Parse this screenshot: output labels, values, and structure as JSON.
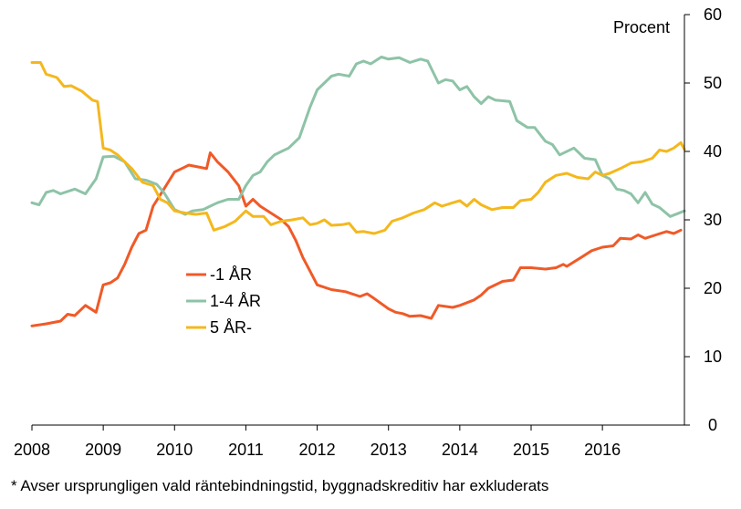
{
  "chart_data": {
    "type": "line",
    "unit_label": "Procent",
    "x_ticks": [
      "2008",
      "2009",
      "2010",
      "2011",
      "2012",
      "2013",
      "2014",
      "2015",
      "2016"
    ],
    "xlim": [
      2008,
      2017.15
    ],
    "ylim": [
      0,
      60
    ],
    "y_ticks": [
      0,
      10,
      20,
      30,
      40,
      50,
      60
    ],
    "y_axis_side": "right",
    "grid": false,
    "legend_placement": "center-left",
    "series": [
      {
        "name": "-1 ÅR",
        "color": "#F05A28",
        "points": [
          [
            2008.0,
            14.5
          ],
          [
            2008.2,
            14.8
          ],
          [
            2008.4,
            15.2
          ],
          [
            2008.5,
            16.2
          ],
          [
            2008.6,
            16.0
          ],
          [
            2008.75,
            17.5
          ],
          [
            2008.9,
            16.5
          ],
          [
            2009.0,
            20.5
          ],
          [
            2009.1,
            20.8
          ],
          [
            2009.2,
            21.5
          ],
          [
            2009.3,
            23.5
          ],
          [
            2009.4,
            26.0
          ],
          [
            2009.5,
            28.0
          ],
          [
            2009.6,
            28.5
          ],
          [
            2009.7,
            32.0
          ],
          [
            2009.85,
            34.5
          ],
          [
            2010.0,
            37.0
          ],
          [
            2010.1,
            37.5
          ],
          [
            2010.2,
            38.0
          ],
          [
            2010.3,
            37.8
          ],
          [
            2010.45,
            37.5
          ],
          [
            2010.5,
            39.8
          ],
          [
            2010.6,
            38.5
          ],
          [
            2010.75,
            37.0
          ],
          [
            2010.9,
            35.0
          ],
          [
            2011.0,
            32.0
          ],
          [
            2011.1,
            33.0
          ],
          [
            2011.2,
            32.0
          ],
          [
            2011.35,
            31.0
          ],
          [
            2011.5,
            30.0
          ],
          [
            2011.6,
            29.0
          ],
          [
            2011.7,
            27.0
          ],
          [
            2011.8,
            24.5
          ],
          [
            2011.9,
            22.5
          ],
          [
            2012.0,
            20.5
          ],
          [
            2012.2,
            19.8
          ],
          [
            2012.4,
            19.5
          ],
          [
            2012.6,
            18.8
          ],
          [
            2012.7,
            19.2
          ],
          [
            2012.8,
            18.5
          ],
          [
            2013.0,
            17.0
          ],
          [
            2013.1,
            16.5
          ],
          [
            2013.2,
            16.3
          ],
          [
            2013.3,
            15.9
          ],
          [
            2013.45,
            16.0
          ],
          [
            2013.6,
            15.6
          ],
          [
            2013.7,
            17.5
          ],
          [
            2013.9,
            17.2
          ],
          [
            2014.0,
            17.5
          ],
          [
            2014.2,
            18.3
          ],
          [
            2014.3,
            19.0
          ],
          [
            2014.4,
            20.0
          ],
          [
            2014.6,
            21.0
          ],
          [
            2014.75,
            21.2
          ],
          [
            2014.85,
            23.0
          ],
          [
            2015.0,
            23.0
          ],
          [
            2015.2,
            22.8
          ],
          [
            2015.35,
            23.0
          ],
          [
            2015.45,
            23.5
          ],
          [
            2015.5,
            23.2
          ],
          [
            2015.7,
            24.5
          ],
          [
            2015.85,
            25.5
          ],
          [
            2016.0,
            26.0
          ],
          [
            2016.15,
            26.2
          ],
          [
            2016.25,
            27.3
          ],
          [
            2016.4,
            27.2
          ],
          [
            2016.5,
            27.8
          ],
          [
            2016.6,
            27.3
          ],
          [
            2016.75,
            27.8
          ],
          [
            2016.9,
            28.3
          ],
          [
            2017.0,
            28.0
          ],
          [
            2017.1,
            28.5
          ]
        ]
      },
      {
        "name": "1-4 ÅR",
        "color": "#8EC3A7",
        "points": [
          [
            2008.0,
            32.5
          ],
          [
            2008.1,
            32.2
          ],
          [
            2008.2,
            34.0
          ],
          [
            2008.3,
            34.3
          ],
          [
            2008.4,
            33.8
          ],
          [
            2008.6,
            34.5
          ],
          [
            2008.75,
            33.8
          ],
          [
            2008.9,
            36.0
          ],
          [
            2009.0,
            39.2
          ],
          [
            2009.15,
            39.3
          ],
          [
            2009.3,
            38.5
          ],
          [
            2009.45,
            36.0
          ],
          [
            2009.6,
            35.8
          ],
          [
            2009.75,
            35.2
          ],
          [
            2009.85,
            34.0
          ],
          [
            2010.0,
            31.5
          ],
          [
            2010.15,
            30.8
          ],
          [
            2010.25,
            31.3
          ],
          [
            2010.4,
            31.5
          ],
          [
            2010.5,
            32.0
          ],
          [
            2010.6,
            32.5
          ],
          [
            2010.75,
            33.0
          ],
          [
            2010.9,
            33.0
          ],
          [
            2011.0,
            35.0
          ],
          [
            2011.1,
            36.5
          ],
          [
            2011.2,
            37.0
          ],
          [
            2011.3,
            38.5
          ],
          [
            2011.4,
            39.5
          ],
          [
            2011.5,
            40.0
          ],
          [
            2011.6,
            40.5
          ],
          [
            2011.75,
            42.0
          ],
          [
            2011.9,
            46.5
          ],
          [
            2012.0,
            49.0
          ],
          [
            2012.1,
            50.0
          ],
          [
            2012.2,
            51.0
          ],
          [
            2012.3,
            51.3
          ],
          [
            2012.45,
            51.0
          ],
          [
            2012.55,
            52.8
          ],
          [
            2012.65,
            53.2
          ],
          [
            2012.75,
            52.8
          ],
          [
            2012.9,
            53.8
          ],
          [
            2013.0,
            53.5
          ],
          [
            2013.15,
            53.7
          ],
          [
            2013.3,
            53.0
          ],
          [
            2013.45,
            53.5
          ],
          [
            2013.55,
            53.2
          ],
          [
            2013.7,
            50.0
          ],
          [
            2013.8,
            50.5
          ],
          [
            2013.9,
            50.3
          ],
          [
            2014.0,
            49.0
          ],
          [
            2014.1,
            49.5
          ],
          [
            2014.2,
            48.0
          ],
          [
            2014.3,
            47.0
          ],
          [
            2014.4,
            48.0
          ],
          [
            2014.5,
            47.5
          ],
          [
            2014.7,
            47.3
          ],
          [
            2014.8,
            44.5
          ],
          [
            2014.95,
            43.5
          ],
          [
            2015.05,
            43.5
          ],
          [
            2015.2,
            41.5
          ],
          [
            2015.3,
            41.0
          ],
          [
            2015.4,
            39.5
          ],
          [
            2015.6,
            40.5
          ],
          [
            2015.75,
            39.0
          ],
          [
            2015.9,
            38.8
          ],
          [
            2016.0,
            36.5
          ],
          [
            2016.1,
            36.0
          ],
          [
            2016.2,
            34.5
          ],
          [
            2016.3,
            34.3
          ],
          [
            2016.4,
            33.8
          ],
          [
            2016.5,
            32.5
          ],
          [
            2016.6,
            34.0
          ],
          [
            2016.7,
            32.3
          ],
          [
            2016.8,
            31.8
          ],
          [
            2016.95,
            30.5
          ],
          [
            2017.05,
            30.9
          ],
          [
            2017.15,
            31.3
          ]
        ]
      },
      {
        "name": "5 ÅR-",
        "color": "#F4B81E",
        "points": [
          [
            2008.0,
            53.0
          ],
          [
            2008.12,
            53.0
          ],
          [
            2008.2,
            51.3
          ],
          [
            2008.35,
            50.8
          ],
          [
            2008.45,
            49.5
          ],
          [
            2008.55,
            49.6
          ],
          [
            2008.7,
            48.8
          ],
          [
            2008.85,
            47.5
          ],
          [
            2008.92,
            47.3
          ],
          [
            2009.0,
            40.5
          ],
          [
            2009.1,
            40.2
          ],
          [
            2009.2,
            39.5
          ],
          [
            2009.3,
            38.5
          ],
          [
            2009.4,
            37.5
          ],
          [
            2009.55,
            35.5
          ],
          [
            2009.7,
            35.0
          ],
          [
            2009.8,
            33.0
          ],
          [
            2009.9,
            32.5
          ],
          [
            2010.0,
            31.3
          ],
          [
            2010.15,
            31.0
          ],
          [
            2010.3,
            30.8
          ],
          [
            2010.45,
            31.0
          ],
          [
            2010.55,
            28.5
          ],
          [
            2010.7,
            29.0
          ],
          [
            2010.85,
            29.8
          ],
          [
            2011.0,
            31.3
          ],
          [
            2011.1,
            30.5
          ],
          [
            2011.25,
            30.5
          ],
          [
            2011.35,
            29.3
          ],
          [
            2011.5,
            29.8
          ],
          [
            2011.65,
            30.0
          ],
          [
            2011.8,
            30.3
          ],
          [
            2011.9,
            29.3
          ],
          [
            2012.0,
            29.5
          ],
          [
            2012.1,
            30.0
          ],
          [
            2012.2,
            29.2
          ],
          [
            2012.35,
            29.3
          ],
          [
            2012.45,
            29.5
          ],
          [
            2012.55,
            28.2
          ],
          [
            2012.65,
            28.3
          ],
          [
            2012.8,
            28.0
          ],
          [
            2012.95,
            28.5
          ],
          [
            2013.05,
            29.8
          ],
          [
            2013.2,
            30.3
          ],
          [
            2013.35,
            31.0
          ],
          [
            2013.5,
            31.5
          ],
          [
            2013.65,
            32.5
          ],
          [
            2013.75,
            32.0
          ],
          [
            2013.9,
            32.5
          ],
          [
            2014.0,
            32.8
          ],
          [
            2014.1,
            32.0
          ],
          [
            2014.2,
            33.0
          ],
          [
            2014.3,
            32.2
          ],
          [
            2014.45,
            31.5
          ],
          [
            2014.6,
            31.8
          ],
          [
            2014.75,
            31.8
          ],
          [
            2014.85,
            32.8
          ],
          [
            2015.0,
            33.0
          ],
          [
            2015.1,
            34.0
          ],
          [
            2015.2,
            35.5
          ],
          [
            2015.35,
            36.5
          ],
          [
            2015.5,
            36.8
          ],
          [
            2015.65,
            36.2
          ],
          [
            2015.8,
            36.0
          ],
          [
            2015.9,
            37.0
          ],
          [
            2016.0,
            36.5
          ],
          [
            2016.1,
            36.8
          ],
          [
            2016.25,
            37.5
          ],
          [
            2016.4,
            38.3
          ],
          [
            2016.55,
            38.5
          ],
          [
            2016.7,
            39.0
          ],
          [
            2016.8,
            40.2
          ],
          [
            2016.9,
            40.0
          ],
          [
            2017.0,
            40.5
          ],
          [
            2017.1,
            41.3
          ],
          [
            2017.15,
            40.3
          ]
        ]
      }
    ]
  },
  "footnote": "* Avser ursprungligen vald räntebindningstid, byggnadskreditiv har exkluderats"
}
